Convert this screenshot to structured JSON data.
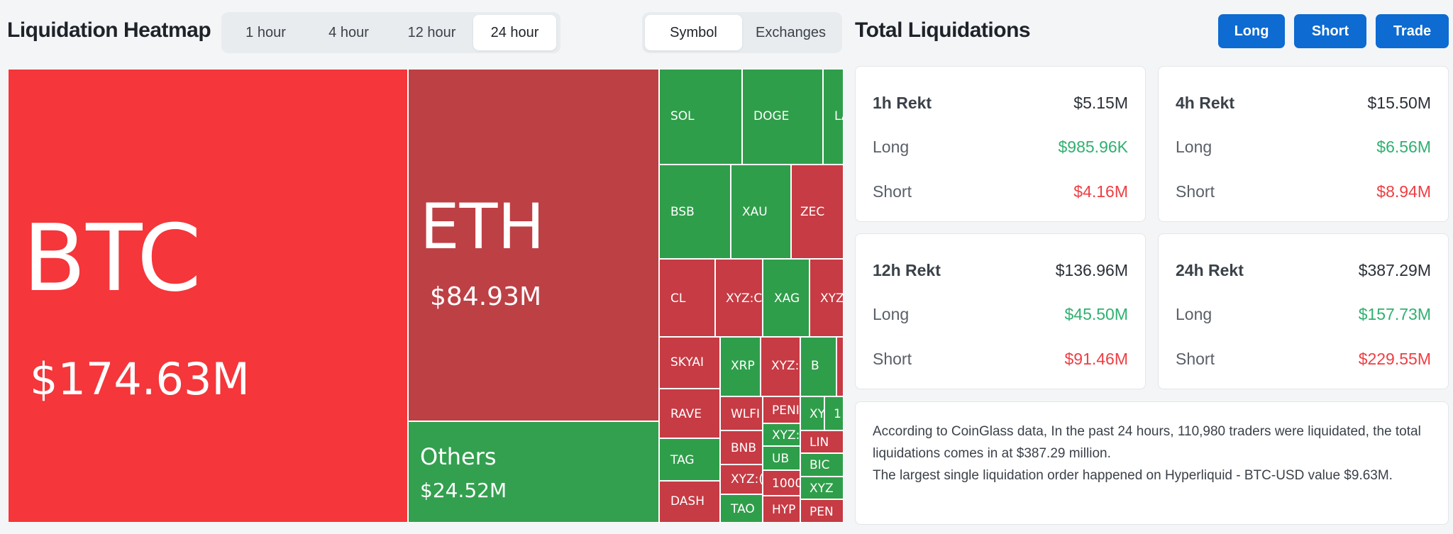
{
  "heatmap": {
    "title": "Liquidation Heatmap",
    "time_ranges": [
      "1 hour",
      "4 hour",
      "12 hour",
      "24 hour"
    ],
    "active_time_range": "24 hour",
    "group_by": [
      "Symbol",
      "Exchanges"
    ],
    "active_group_by": "Symbol",
    "tiles": [
      {
        "symbol": "BTC",
        "amount": "$174.63M",
        "side": "long"
      },
      {
        "symbol": "ETH",
        "amount": "$84.93M",
        "side": "long"
      },
      {
        "symbol": "Others",
        "amount": "$24.52M",
        "side": "short"
      },
      {
        "symbol": "SOL",
        "amount": "",
        "side": "short"
      },
      {
        "symbol": "DOGE",
        "amount": "",
        "side": "short"
      },
      {
        "symbol": "LA",
        "amount": "",
        "side": "short"
      },
      {
        "symbol": "BSB",
        "amount": "",
        "side": "short"
      },
      {
        "symbol": "XAU",
        "amount": "",
        "side": "short"
      },
      {
        "symbol": "ZEC",
        "amount": "",
        "side": "long"
      },
      {
        "symbol": "CL",
        "amount": "",
        "side": "long"
      },
      {
        "symbol": "XYZ:C",
        "amount": "",
        "side": "long"
      },
      {
        "symbol": "XAG",
        "amount": "",
        "side": "short"
      },
      {
        "symbol": "XYZ",
        "amount": "",
        "side": "long"
      },
      {
        "symbol": "SKYAI",
        "amount": "",
        "side": "long"
      },
      {
        "symbol": "XRP",
        "amount": "",
        "side": "short"
      },
      {
        "symbol": "XYZ:",
        "amount": "",
        "side": "long"
      },
      {
        "symbol": "B",
        "amount": "",
        "side": "short"
      },
      {
        "symbol": "RAVE",
        "amount": "",
        "side": "long"
      },
      {
        "symbol": "WLFI",
        "amount": "",
        "side": "long"
      },
      {
        "symbol": "PENI",
        "amount": "",
        "side": "long"
      },
      {
        "symbol": "XY",
        "amount": "",
        "side": "short"
      },
      {
        "symbol": "1",
        "amount": "",
        "side": "short"
      },
      {
        "symbol": "TAG",
        "amount": "",
        "side": "short"
      },
      {
        "symbol": "BNB",
        "amount": "",
        "side": "long"
      },
      {
        "symbol": "XYZ:",
        "amount": "",
        "side": "short"
      },
      {
        "symbol": "LIN",
        "amount": "",
        "side": "long"
      },
      {
        "symbol": "UB",
        "amount": "",
        "side": "short"
      },
      {
        "symbol": "BIC",
        "amount": "",
        "side": "short"
      },
      {
        "symbol": "DASH",
        "amount": "",
        "side": "long"
      },
      {
        "symbol": "XYZ:(",
        "amount": "",
        "side": "long"
      },
      {
        "symbol": "1000",
        "amount": "",
        "side": "short"
      },
      {
        "symbol": "XYZ",
        "amount": "",
        "side": "short"
      },
      {
        "symbol": "TAO",
        "amount": "",
        "side": "short"
      },
      {
        "symbol": "HYP",
        "amount": "",
        "side": "long"
      },
      {
        "symbol": "PEN",
        "amount": "",
        "side": "long"
      }
    ]
  },
  "totals": {
    "title": "Total Liquidations",
    "buttons": {
      "long": "Long",
      "short": "Short",
      "trade": "Trade"
    },
    "cards": [
      {
        "label": "1h Rekt",
        "total": "$5.15M",
        "long_label": "Long",
        "long": "$985.96K",
        "short_label": "Short",
        "short": "$4.16M"
      },
      {
        "label": "4h Rekt",
        "total": "$15.50M",
        "long_label": "Long",
        "long": "$6.56M",
        "short_label": "Short",
        "short": "$8.94M"
      },
      {
        "label": "12h Rekt",
        "total": "$136.96M",
        "long_label": "Long",
        "long": "$45.50M",
        "short_label": "Short",
        "short": "$91.46M"
      },
      {
        "label": "24h Rekt",
        "total": "$387.29M",
        "long_label": "Long",
        "long": "$157.73M",
        "short_label": "Short",
        "short": "$229.55M"
      }
    ],
    "summary_line1": "According to CoinGlass data, In the past 24 hours, 110,980 traders were liquidated, the total liquidations comes in at $387.29 million.",
    "summary_line2": "The largest single liquidation order happened on Hyperliquid - BTC-USD value $9.63M."
  },
  "colors": {
    "accent_blue": "#0d6bd2",
    "long_green": "#2fb070",
    "short_red": "#ee3e43",
    "tile_red_bright": "#f5363a",
    "tile_red_dark": "#bd4045",
    "tile_green": "#33a04f"
  }
}
